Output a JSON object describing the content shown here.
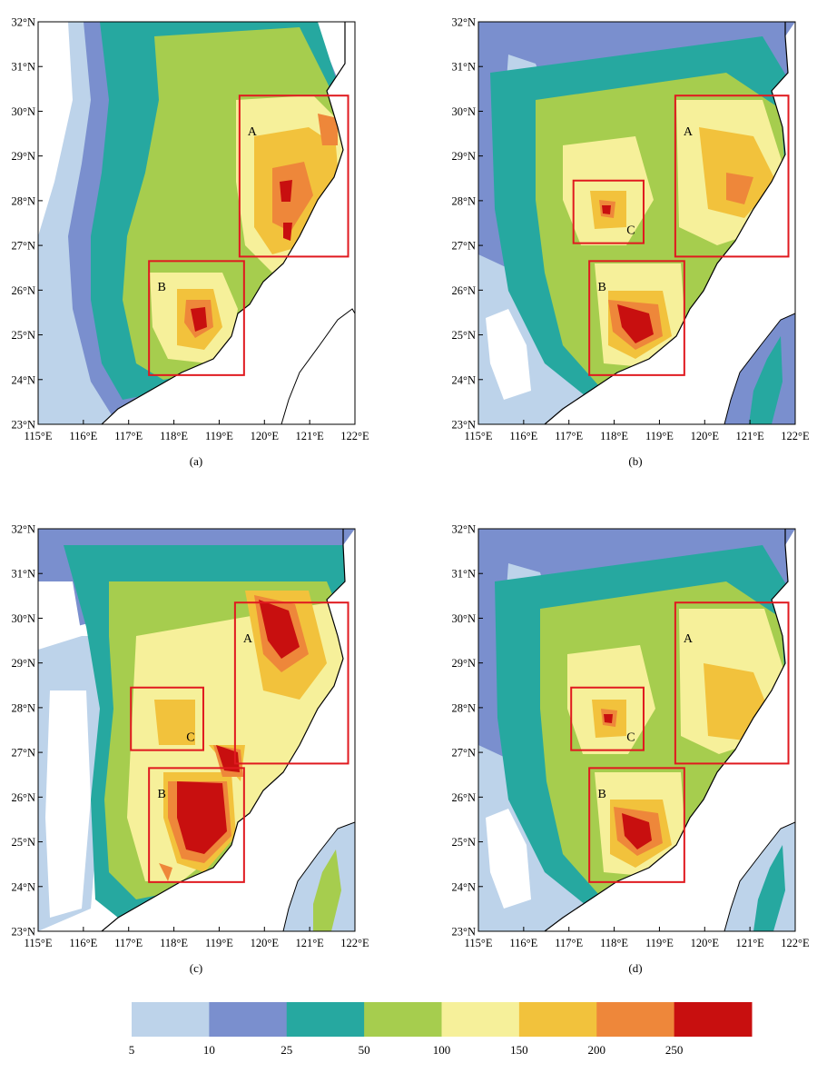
{
  "lat_labels": [
    "23°N",
    "24°N",
    "25°N",
    "26°N",
    "27°N",
    "28°N",
    "29°N",
    "30°N",
    "31°N",
    "32°N"
  ],
  "lon_labels": [
    "115°E",
    "116°E",
    "117°E",
    "118°E",
    "119°E",
    "120°E",
    "121°E",
    "122°E"
  ],
  "lat_range": [
    23,
    32
  ],
  "lon_range": [
    115,
    122
  ],
  "panels": [
    {
      "label": "(a)",
      "boxes": [
        {
          "label": "A",
          "lon": [
            119.45,
            121.85
          ],
          "lat": [
            26.75,
            30.35
          ]
        },
        {
          "label": "B",
          "lon": [
            117.45,
            119.55
          ],
          "lat": [
            24.1,
            26.65
          ]
        }
      ]
    },
    {
      "label": "(b)",
      "boxes": [
        {
          "label": "A",
          "lon": [
            119.35,
            121.85
          ],
          "lat": [
            26.75,
            30.35
          ]
        },
        {
          "label": "B",
          "lon": [
            117.45,
            119.55
          ],
          "lat": [
            24.1,
            26.65
          ]
        },
        {
          "label": "C",
          "lon": [
            117.1,
            118.65
          ],
          "lat": [
            27.05,
            28.45
          ]
        }
      ]
    },
    {
      "label": "(c)",
      "boxes": [
        {
          "label": "A",
          "lon": [
            119.35,
            121.85
          ],
          "lat": [
            26.75,
            30.35
          ]
        },
        {
          "label": "B",
          "lon": [
            117.45,
            119.55
          ],
          "lat": [
            24.1,
            26.65
          ]
        },
        {
          "label": "C",
          "lon": [
            117.05,
            118.65
          ],
          "lat": [
            27.05,
            28.45
          ]
        }
      ]
    },
    {
      "label": "(d)",
      "boxes": [
        {
          "label": "A",
          "lon": [
            119.35,
            121.85
          ],
          "lat": [
            26.75,
            30.35
          ]
        },
        {
          "label": "B",
          "lon": [
            117.45,
            119.55
          ],
          "lat": [
            24.1,
            26.65
          ]
        },
        {
          "label": "C",
          "lon": [
            117.05,
            118.65
          ],
          "lat": [
            27.05,
            28.45
          ]
        }
      ]
    }
  ],
  "colorbar": {
    "labels": [
      "5",
      "10",
      "25",
      "50",
      "100",
      "150",
      "200",
      "250"
    ],
    "colors": [
      "#bdd3ea",
      "#7a8fce",
      "#26a8a0",
      "#a6cd4e",
      "#f6f09a",
      "#f2c23c",
      "#ee873a",
      "#c80f0f"
    ]
  },
  "box_color": "#e0191f",
  "land_colors": {
    "base": "#26a8a0",
    "edge": "#7a8fce",
    "outer": "#bdd3ea"
  }
}
